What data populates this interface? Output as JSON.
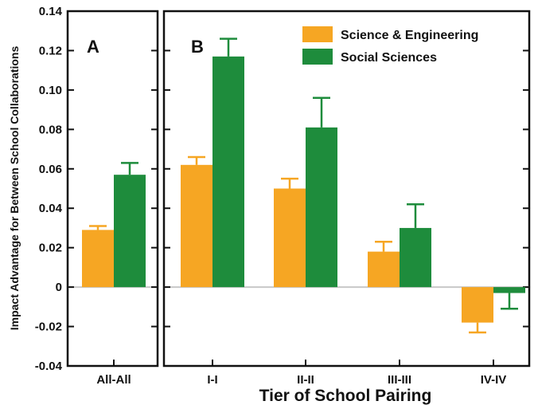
{
  "chart_data": {
    "type": "bar",
    "ylabel": "Impact Advantage for Between School Collaborations",
    "xlabel": "Tier of School Pairing",
    "ylim": [
      -0.04,
      0.14
    ],
    "yticks": [
      "-0.04",
      "-0.02",
      "0",
      "0.02",
      "0.04",
      "0.06",
      "0.08",
      "0.10",
      "0.12",
      "0.14"
    ],
    "yticks_values": [
      -0.04,
      -0.02,
      0,
      0.02,
      0.04,
      0.06,
      0.08,
      0.1,
      0.12,
      0.14
    ],
    "colors": {
      "science": "#f6a623",
      "social": "#1e8c3c",
      "zero_line": "#c8c8c8"
    },
    "legend": {
      "placement": "top-right",
      "entries": [
        "Science & Engineering",
        "Social Sciences"
      ]
    },
    "panels": [
      {
        "letter": "A",
        "categories": [
          "All-All"
        ],
        "series": [
          {
            "name": "Science & Engineering",
            "values": [
              0.029
            ],
            "errors": [
              0.002
            ]
          },
          {
            "name": "Social Sciences",
            "values": [
              0.057
            ],
            "errors": [
              0.006
            ]
          }
        ]
      },
      {
        "letter": "B",
        "categories": [
          "I-I",
          "II-II",
          "III-III",
          "IV-IV"
        ],
        "series": [
          {
            "name": "Science & Engineering",
            "values": [
              0.062,
              0.05,
              0.018,
              -0.018
            ],
            "errors": [
              0.004,
              0.005,
              0.005,
              0.005
            ]
          },
          {
            "name": "Social Sciences",
            "values": [
              0.117,
              0.081,
              0.03,
              -0.003
            ],
            "errors": [
              0.009,
              0.015,
              0.012,
              0.008
            ]
          }
        ]
      }
    ]
  }
}
